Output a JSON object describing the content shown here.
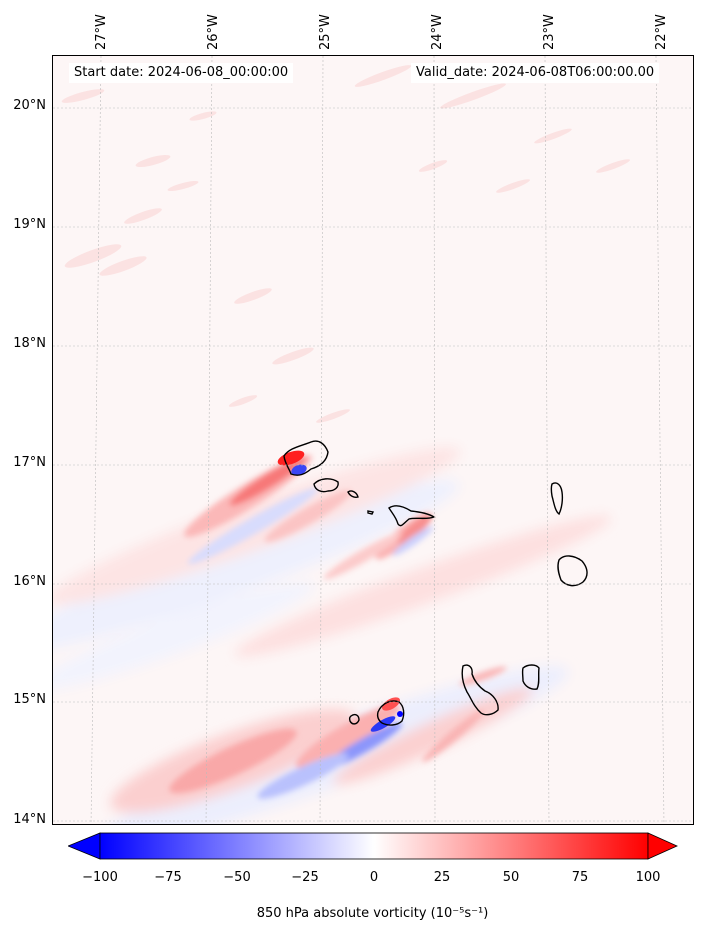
{
  "map": {
    "start_date": "Start date: 2024-06-08_00:00:00",
    "valid_date": "Valid_date: 2024-06-08T06:00:00.00",
    "lat_labels": [
      "20°N",
      "19°N",
      "18°N",
      "17°N",
      "16°N",
      "15°N",
      "14°N"
    ],
    "lon_labels": [
      "27°W",
      "26°W",
      "25°W",
      "24°W",
      "23°W",
      "22°W"
    ],
    "extent": {
      "lon_min": -27.35,
      "lon_max": -21.75,
      "lat_min": 13.95,
      "lat_max": 20.4
    }
  },
  "colorbar": {
    "ticks": [
      "−100",
      "−75",
      "−50",
      "−25",
      "0",
      "25",
      "50",
      "75",
      "100"
    ],
    "label": "850 hPa absolute vorticity (10⁻⁵s⁻¹)",
    "range": [
      -100,
      100
    ],
    "colors": {
      "min": "#0000ff",
      "mid": "#ffffff",
      "max": "#ff0000"
    }
  }
}
